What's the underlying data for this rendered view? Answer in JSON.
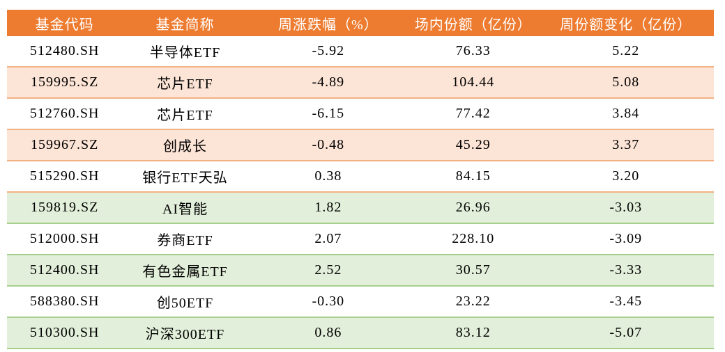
{
  "colors": {
    "header_bg": "#ED7C31",
    "header_text": "#FFFFFF",
    "peach_row": "#FCE4D6",
    "green_row": "#E2EFDA",
    "peach_border": "#F2B183",
    "green_border": "#A8D08D",
    "body_text": "#000000"
  },
  "table": {
    "headers": [
      "基金代码",
      "基金简称",
      "周涨跌幅（%）",
      "场内份额（亿份）",
      "周份额变化（亿份）"
    ],
    "col_widths": [
      "16.3%",
      "17.8%",
      "22.7%",
      "18.3%",
      "24.9%"
    ],
    "rows": [
      {
        "code": "512480.SH",
        "name": "半导体ETF",
        "pct_change": "-5.92",
        "shares": "76.33",
        "share_change": "5.22",
        "section": "orange",
        "tint": false
      },
      {
        "code": "159995.SZ",
        "name": "芯片ETF",
        "pct_change": "-4.89",
        "shares": "104.44",
        "share_change": "5.08",
        "section": "orange",
        "tint": true
      },
      {
        "code": "512760.SH",
        "name": "芯片ETF",
        "pct_change": "-6.15",
        "shares": "77.42",
        "share_change": "3.84",
        "section": "orange",
        "tint": false
      },
      {
        "code": "159967.SZ",
        "name": "创成长",
        "pct_change": "-0.48",
        "shares": "45.29",
        "share_change": "3.37",
        "section": "orange",
        "tint": true
      },
      {
        "code": "515290.SH",
        "name": "银行ETF天弘",
        "pct_change": "0.38",
        "shares": "84.15",
        "share_change": "3.20",
        "section": "orange",
        "tint": false
      },
      {
        "code": "159819.SZ",
        "name": "AI智能",
        "pct_change": "1.82",
        "shares": "26.96",
        "share_change": "-3.03",
        "section": "green",
        "tint": true
      },
      {
        "code": "512000.SH",
        "name": "券商ETF",
        "pct_change": "2.07",
        "shares": "228.10",
        "share_change": "-3.09",
        "section": "green",
        "tint": false
      },
      {
        "code": "512400.SH",
        "name": "有色金属ETF",
        "pct_change": "2.52",
        "shares": "30.57",
        "share_change": "-3.33",
        "section": "green",
        "tint": true
      },
      {
        "code": "588380.SH",
        "name": "创50ETF",
        "pct_change": "-0.30",
        "shares": "23.22",
        "share_change": "-3.45",
        "section": "green",
        "tint": false
      },
      {
        "code": "510300.SH",
        "name": "沪深300ETF",
        "pct_change": "0.86",
        "shares": "83.12",
        "share_change": "-5.07",
        "section": "green",
        "tint": true
      }
    ]
  },
  "chart_data": {
    "type": "table",
    "columns": [
      "基金代码",
      "基金简称",
      "周涨跌幅（%）",
      "场内份额（亿份）",
      "周份额变化（亿份）"
    ],
    "rows": [
      [
        "512480.SH",
        "半导体ETF",
        "-5.92",
        "76.33",
        "5.22"
      ],
      [
        "159995.SZ",
        "芯片ETF",
        "-4.89",
        "104.44",
        "5.08"
      ],
      [
        "512760.SH",
        "芯片ETF",
        "-6.15",
        "77.42",
        "3.84"
      ],
      [
        "159967.SZ",
        "创成长",
        "-0.48",
        "45.29",
        "3.37"
      ],
      [
        "515290.SH",
        "银行ETF天弘",
        "0.38",
        "84.15",
        "3.20"
      ],
      [
        "159819.SZ",
        "AI智能",
        "1.82",
        "26.96",
        "-3.03"
      ],
      [
        "512000.SH",
        "券商ETF",
        "2.07",
        "228.10",
        "-3.09"
      ],
      [
        "512400.SH",
        "有色金属ETF",
        "2.52",
        "30.57",
        "-3.33"
      ],
      [
        "588380.SH",
        "创50ETF",
        "-0.30",
        "23.22",
        "-3.45"
      ],
      [
        "510300.SH",
        "沪深300ETF",
        "0.86",
        "83.12",
        "-5.07"
      ]
    ],
    "layout": {
      "header_style": "orange-fill-white-text",
      "zebra": "alternating tint rows; rows with positive share change use peach tint, rows with negative share change use green tint",
      "grid": "horizontal row separators only"
    }
  }
}
